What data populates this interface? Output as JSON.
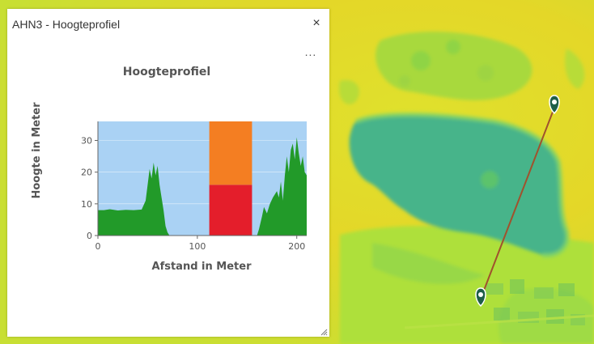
{
  "popup": {
    "title": "AHN3 - Hoogteprofiel",
    "close_icon": "close-icon",
    "menu_icon": "more-horizontal-icon",
    "menu_label": "...",
    "close_label": "×"
  },
  "chart_data": {
    "type": "area",
    "title": "Hoogteprofiel",
    "xlabel": "Afstand in Meter",
    "ylabel": "Hoogte in Meter",
    "xlim": [
      0,
      210
    ],
    "ylim": [
      0,
      36
    ],
    "xticks": [
      0,
      100,
      200
    ],
    "yticks": [
      0,
      10,
      20,
      30
    ],
    "grid": true,
    "legend": "none",
    "colors": {
      "background": "#aad2f4",
      "terrain": "#229a29",
      "bar_upper": "#f47e22",
      "bar_lower": "#e41e2b"
    },
    "series": [
      {
        "values": {
          "x": [
            0,
            6,
            12,
            20,
            28,
            36,
            44,
            48,
            50,
            52,
            54,
            56,
            58,
            60,
            62,
            64,
            66,
            68,
            70,
            72,
            160,
            162,
            165,
            167,
            170,
            173,
            176,
            180,
            182,
            184,
            186,
            188,
            190,
            192,
            194,
            196,
            198,
            200,
            202,
            204,
            206,
            208,
            210
          ],
          "y": [
            8,
            8,
            8.3,
            7.9,
            8.1,
            8,
            8.2,
            11,
            16,
            21,
            18,
            23,
            19,
            22,
            16,
            12,
            8,
            3,
            1,
            0,
            0,
            2,
            6,
            9,
            7,
            10,
            12,
            14,
            12,
            17,
            11,
            19,
            25,
            20,
            27,
            29,
            24,
            31,
            26,
            22,
            25,
            20,
            19
          ]
        }
      }
    ],
    "bands": [
      {
        "x_start": 112,
        "x_end": 155,
        "y_start": 0,
        "y_end": 16
      },
      {
        "x_start": 112,
        "x_end": 155,
        "y_start": 16,
        "y_end": 36
      }
    ]
  },
  "map": {
    "colors": {
      "high": "#e9d927",
      "mid": "#c2e02c",
      "low": "#8fd445",
      "water": "#47b48a",
      "profile_line": "#a0522d",
      "marker": "#1e5e48"
    },
    "markers": [
      "start-marker",
      "end-marker"
    ],
    "marker_icon": "map-pin-icon"
  }
}
